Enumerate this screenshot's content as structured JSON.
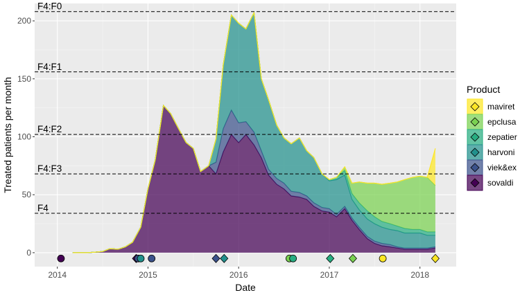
{
  "chart_data": {
    "type": "area",
    "xlabel": "Date",
    "ylabel": "Treated patients per month",
    "x_ticks": [
      "2014",
      "2015",
      "2016",
      "2017",
      "2018"
    ],
    "y_ticks": [
      0,
      50,
      100,
      150,
      200
    ],
    "xlim": [
      2013.75,
      2018.4
    ],
    "ylim": [
      -12,
      215
    ],
    "grid": true,
    "legend_title": "Product",
    "legend_position": "right",
    "x": [
      2014.17,
      2014.25,
      2014.33,
      2014.42,
      2014.5,
      2014.58,
      2014.67,
      2014.75,
      2014.83,
      2014.92,
      2015.0,
      2015.08,
      2015.17,
      2015.25,
      2015.33,
      2015.42,
      2015.5,
      2015.58,
      2015.67,
      2015.75,
      2015.83,
      2015.92,
      2016.0,
      2016.08,
      2016.17,
      2016.25,
      2016.33,
      2016.42,
      2016.5,
      2016.58,
      2016.67,
      2016.75,
      2016.83,
      2016.92,
      2017.0,
      2017.08,
      2017.17,
      2017.25,
      2017.33,
      2017.42,
      2017.5,
      2017.58,
      2017.67,
      2017.75,
      2017.83,
      2017.92,
      2018.0,
      2018.08,
      2018.17
    ],
    "series": [
      {
        "name": "sovaldi",
        "color": "#440154",
        "values": [
          0,
          0,
          0,
          0.5,
          1,
          3.5,
          3,
          5,
          9,
          22,
          55,
          80,
          127,
          120,
          108,
          95,
          90,
          70,
          75,
          68,
          87,
          102,
          95,
          102,
          93,
          82,
          67,
          59,
          55,
          49,
          48,
          46,
          40,
          36,
          35,
          31,
          38,
          28,
          20,
          12,
          8,
          6,
          5,
          4,
          3,
          3,
          3,
          3,
          4
        ]
      },
      {
        "name": "viek&ex",
        "color": "#3b528b",
        "values": [
          0,
          0,
          0,
          0,
          0,
          0,
          0,
          0,
          0,
          0,
          0,
          0,
          0,
          0,
          0,
          0,
          0,
          0,
          0,
          10,
          20,
          21,
          17,
          11,
          11,
          6,
          5,
          5,
          5,
          4,
          4,
          3,
          3,
          3,
          3,
          2,
          2,
          2,
          2,
          2,
          2,
          2,
          2,
          1,
          1,
          1,
          1,
          1,
          1
        ]
      },
      {
        "name": "harvoni",
        "color": "#21908c",
        "values": [
          0,
          0,
          0,
          0,
          0,
          0,
          0,
          0,
          0,
          0,
          0,
          0,
          0,
          0,
          0,
          0,
          0,
          0,
          0,
          20,
          55,
          82,
          86,
          80,
          103,
          62,
          60,
          46,
          39,
          41,
          47,
          39,
          39,
          29,
          24,
          30,
          27,
          16,
          15,
          15,
          15,
          14,
          13,
          14,
          13,
          13,
          13,
          11,
          10
        ]
      },
      {
        "name": "zepatier",
        "color": "#27ad81",
        "values": [
          0,
          0,
          0,
          0,
          0,
          0,
          0,
          0,
          0,
          0,
          0,
          0,
          0,
          0,
          0,
          0,
          0,
          0,
          0,
          0,
          0,
          0,
          0,
          0,
          0,
          0,
          0,
          0,
          0,
          0,
          0,
          0,
          0,
          0,
          1,
          2,
          4,
          5,
          6,
          7,
          6,
          5,
          5,
          4,
          4,
          3,
          3,
          3,
          3
        ]
      },
      {
        "name": "epclusa",
        "color": "#7ad151",
        "values": [
          0,
          0,
          0,
          0,
          0,
          0,
          0,
          0,
          0,
          0,
          0,
          0,
          0,
          0,
          0,
          0,
          0,
          0,
          0,
          0,
          0,
          0,
          0,
          0,
          0,
          0,
          0,
          0,
          0,
          0,
          0,
          0,
          0,
          0,
          0,
          0,
          3,
          9,
          18,
          24,
          29,
          32,
          35,
          38,
          42,
          45,
          46,
          47,
          40
        ]
      },
      {
        "name": "maviret",
        "color": "#fde725",
        "values": [
          0,
          0,
          0,
          0,
          0,
          0,
          0,
          0,
          0,
          0,
          0,
          0,
          0,
          0,
          0,
          0,
          0,
          0,
          0,
          0,
          0,
          0,
          0,
          0,
          0,
          0,
          0,
          0,
          0,
          0,
          0,
          0,
          0,
          0,
          0,
          0,
          0,
          0,
          0,
          0,
          0,
          0,
          0,
          0,
          0,
          0,
          0,
          0,
          32
        ]
      }
    ],
    "reference_lines": [
      {
        "label": "F4:F0",
        "y": 208
      },
      {
        "label": "F4:F1",
        "y": 156
      },
      {
        "label": "F4:F2",
        "y": 102
      },
      {
        "label": "F4:F3",
        "y": 68
      },
      {
        "label": "F4",
        "y": 34
      }
    ],
    "launch_markers": [
      {
        "product": "sovaldi",
        "x": 2014.04,
        "shape": "circle"
      },
      {
        "product": "sovaldi",
        "x": 2014.87,
        "shape": "diamond"
      },
      {
        "product": "viek&ex",
        "x": 2014.89,
        "shape": "circle"
      },
      {
        "product": "harvoni",
        "x": 2014.92,
        "shape": "circle"
      },
      {
        "product": "viek&ex",
        "x": 2015.04,
        "shape": "circle"
      },
      {
        "product": "viek&ex",
        "x": 2015.75,
        "shape": "diamond"
      },
      {
        "product": "harvoni",
        "x": 2015.84,
        "shape": "diamond"
      },
      {
        "product": "epclusa",
        "x": 2016.56,
        "shape": "circle"
      },
      {
        "product": "zepatier",
        "x": 2016.6,
        "shape": "circle"
      },
      {
        "product": "zepatier",
        "x": 2017.01,
        "shape": "diamond"
      },
      {
        "product": "epclusa",
        "x": 2017.26,
        "shape": "diamond"
      },
      {
        "product": "maviret",
        "x": 2017.59,
        "shape": "circle"
      },
      {
        "product": "maviret",
        "x": 2018.17,
        "shape": "diamond"
      }
    ],
    "legend_order": [
      "maviret",
      "epclusa",
      "zepatier",
      "harvoni",
      "viek&ex",
      "sovaldi"
    ]
  }
}
